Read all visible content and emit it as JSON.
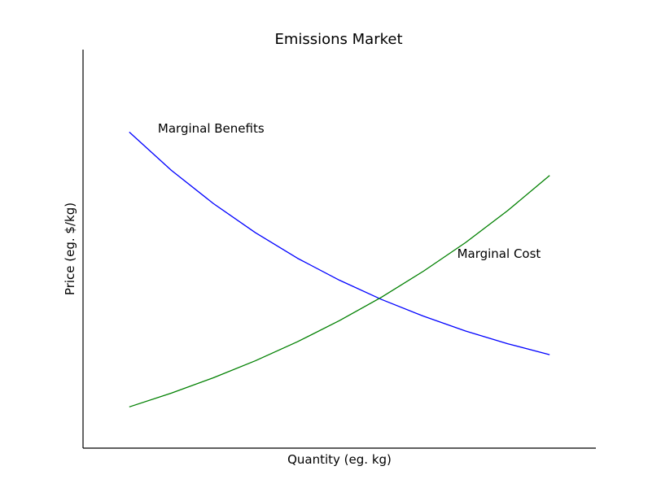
{
  "chart_data": {
    "type": "line",
    "title": "Emissions Market",
    "xlabel": "Quantity (eg. kg)",
    "ylabel": "Price (eg. $/kg)",
    "ticks": "none",
    "grid": false,
    "xlim": [
      -0.11,
      1.11
    ],
    "ylim": [
      -0.15,
      1.3
    ],
    "series": [
      {
        "name": "Marginal Benefits",
        "color": "#0000ff",
        "x": [
          0,
          0.1,
          0.2,
          0.3,
          0.4,
          0.5,
          0.6,
          0.7,
          0.8,
          0.9,
          1.0
        ],
        "y": [
          1.0,
          0.861,
          0.74,
          0.634,
          0.541,
          0.461,
          0.391,
          0.33,
          0.276,
          0.23,
          0.19
        ]
      },
      {
        "name": "Marginal Cost",
        "color": "#008000",
        "x": [
          0,
          0.1,
          0.2,
          0.3,
          0.4,
          0.5,
          0.6,
          0.7,
          0.8,
          0.9,
          1.0
        ],
        "y": [
          0.0,
          0.05,
          0.106,
          0.168,
          0.237,
          0.314,
          0.399,
          0.494,
          0.598,
          0.714,
          0.842
        ]
      }
    ],
    "annotations": [
      {
        "text": "Marginal Benefits",
        "series": 0,
        "x": 0.068,
        "y": 1.012
      },
      {
        "text": "Marginal Cost",
        "series": 1,
        "x": 0.78,
        "y": 0.556
      }
    ]
  }
}
